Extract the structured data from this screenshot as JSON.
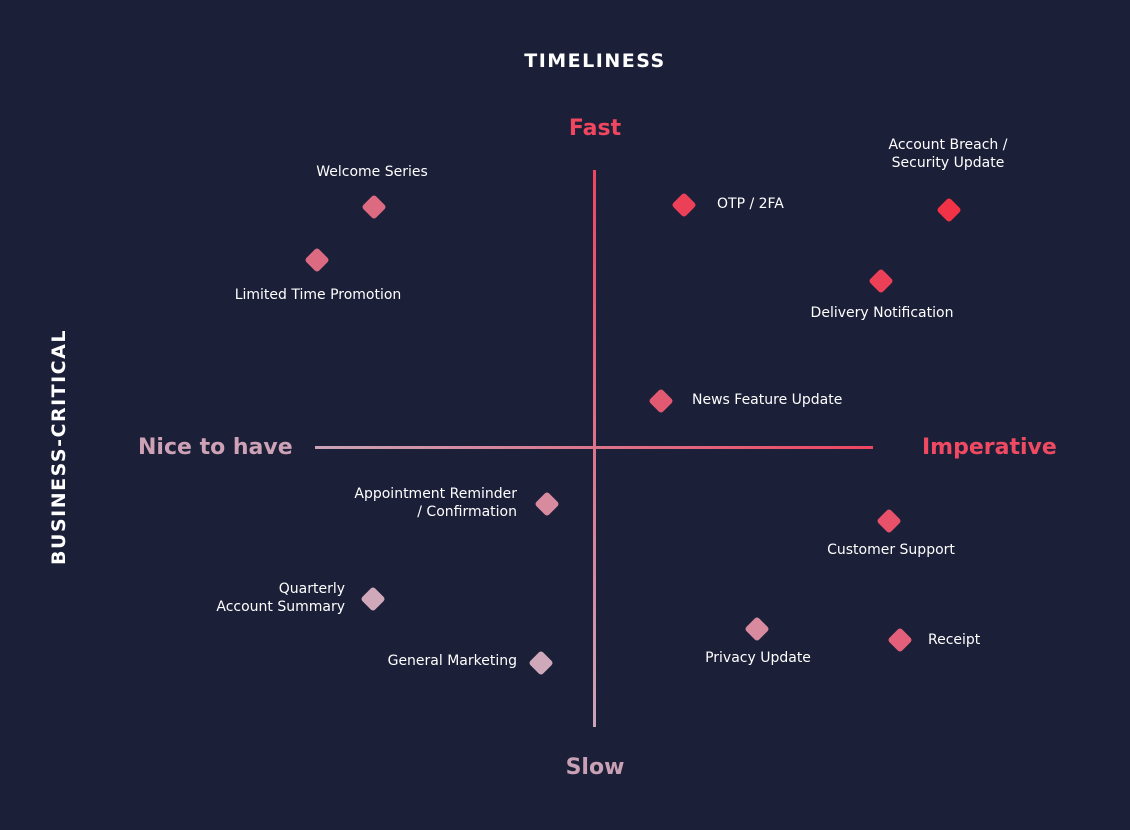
{
  "title_horizontal": "TIMELINESS",
  "title_vertical": "BUSINESS-CRITICAL",
  "axis_ends": {
    "fast": "Fast",
    "slow": "Slow",
    "nice": "Nice to have",
    "imperative": "Imperative"
  },
  "colors": {
    "background": "#1b1f38",
    "hot": "#f03a52",
    "cool": "#cfa8ba"
  },
  "points": [
    {
      "id": "welcome-series",
      "label": "Welcome Series",
      "color": "#dc6a80"
    },
    {
      "id": "limited-time-promotion",
      "label": "Limited Time Promotion",
      "color": "#dc6a80"
    },
    {
      "id": "otp-2fa",
      "label": "OTP / 2FA",
      "color": "#ec3f58"
    },
    {
      "id": "account-breach",
      "label": "Account Breach /\nSecurity Update",
      "color": "#f23247"
    },
    {
      "id": "delivery-notification",
      "label": "Delivery Notification",
      "color": "#ec3f58"
    },
    {
      "id": "news-feature-update",
      "label": "News Feature Update",
      "color": "#e15a72"
    },
    {
      "id": "appointment-reminder",
      "label": "Appointment Reminder\n/ Confirmation",
      "color": "#d88a9f"
    },
    {
      "id": "customer-support",
      "label": "Customer Support",
      "color": "#e8516a"
    },
    {
      "id": "quarterly-account-summary",
      "label": "Quarterly\nAccount Summary",
      "color": "#cfa8ba"
    },
    {
      "id": "privacy-update",
      "label": "Privacy Update",
      "color": "#d88a9f"
    },
    {
      "id": "receipt",
      "label": "Receipt",
      "color": "#e4607a"
    },
    {
      "id": "general-marketing",
      "label": "General Marketing",
      "color": "#cfa8ba"
    }
  ]
}
